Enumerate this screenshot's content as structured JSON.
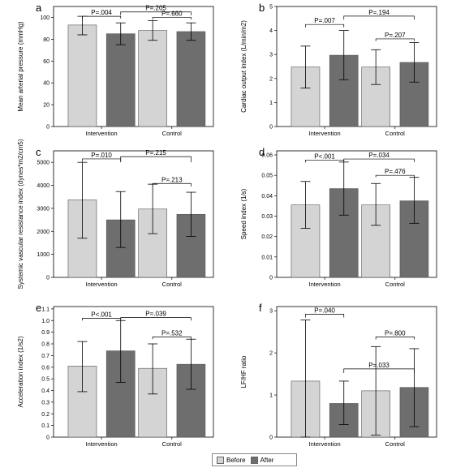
{
  "legend": {
    "before_label": "Before",
    "after_label": "After",
    "before_color": "#d4d4d4",
    "after_color": "#6e6e6e"
  },
  "chart_data": [
    {
      "type": "bar",
      "panel_label": "a",
      "ylabel": "Mean arterial pressure (mmHg)",
      "categories": [
        "Intervention",
        "Control"
      ],
      "ylim": [
        0,
        110
      ],
      "yticks": [
        0,
        20,
        40,
        60,
        80,
        100
      ],
      "ytick_labels": [
        "0",
        "20",
        "40",
        "60",
        "80",
        "100"
      ],
      "series": [
        {
          "name": "Before",
          "values": [
            93,
            88
          ],
          "err_low": [
            84,
            79
          ],
          "err_high": [
            101,
            97
          ]
        },
        {
          "name": "After",
          "values": [
            85,
            87
          ],
          "err_low": [
            75,
            79
          ],
          "err_high": [
            95,
            95
          ]
        }
      ],
      "annotations": [
        {
          "text": "P=.004",
          "from": [
            0,
            0
          ],
          "to": [
            0,
            1
          ],
          "level": 101,
          "drop": 2
        },
        {
          "text": "P=.205",
          "from": [
            0,
            1
          ],
          "to": [
            1,
            1
          ],
          "level": 105,
          "drop": 3
        },
        {
          "text": "P=.660",
          "from": [
            1,
            0
          ],
          "to": [
            1,
            1
          ],
          "level": 100,
          "drop": 2
        }
      ]
    },
    {
      "type": "bar",
      "panel_label": "b",
      "ylabel": "Cardiac output index (L/min/m2)",
      "categories": [
        "Intervention",
        "Control"
      ],
      "ylim": [
        0,
        5
      ],
      "yticks": [
        0,
        1,
        2,
        3,
        4,
        5
      ],
      "ytick_labels": [
        "0",
        "1",
        "2",
        "3",
        "4",
        "5"
      ],
      "series": [
        {
          "name": "Before",
          "values": [
            2.48,
            2.48
          ],
          "err_low": [
            1.6,
            1.75
          ],
          "err_high": [
            3.35,
            3.2
          ]
        },
        {
          "name": "After",
          "values": [
            2.97,
            2.67
          ],
          "err_low": [
            1.95,
            1.85
          ],
          "err_high": [
            4.0,
            3.5
          ]
        }
      ],
      "annotations": [
        {
          "text": "P=.007",
          "from": [
            0,
            0
          ],
          "to": [
            0,
            1
          ],
          "level": 4.25,
          "drop": 0.12
        },
        {
          "text": "P=.194",
          "from": [
            0,
            1
          ],
          "to": [
            1,
            1
          ],
          "level": 4.6,
          "drop": 0.15
        },
        {
          "text": "P=.207",
          "from": [
            1,
            0
          ],
          "to": [
            1,
            1
          ],
          "level": 3.65,
          "drop": 0.1
        }
      ]
    },
    {
      "type": "bar",
      "panel_label": "c",
      "ylabel": "Systemic vascular resistance index (dynes*m2/cm5)",
      "categories": [
        "Intervention",
        "Control"
      ],
      "ylim": [
        0,
        5500
      ],
      "yticks": [
        0,
        1000,
        2000,
        3000,
        4000,
        5000
      ],
      "ytick_labels": [
        "0",
        "1000",
        "2000",
        "3000",
        "4000",
        "5000"
      ],
      "series": [
        {
          "name": "Before",
          "values": [
            3370,
            2970
          ],
          "err_low": [
            1700,
            1900
          ],
          "err_high": [
            5000,
            4050
          ]
        },
        {
          "name": "After",
          "values": [
            2500,
            2740
          ],
          "err_low": [
            1300,
            1780
          ],
          "err_high": [
            3730,
            3700
          ]
        }
      ],
      "annotations": [
        {
          "text": "P=.010",
          "from": [
            0,
            0
          ],
          "to": [
            0,
            1
          ],
          "level": 5150,
          "drop": 120
        },
        {
          "text": "P=.215",
          "from": [
            0,
            1
          ],
          "to": [
            1,
            1
          ],
          "level": 5250,
          "drop": 250
        },
        {
          "text": "P=.213",
          "from": [
            1,
            0
          ],
          "to": [
            1,
            1
          ],
          "level": 4080,
          "drop": 130
        }
      ]
    },
    {
      "type": "bar",
      "panel_label": "d",
      "ylabel": "Speed index (1/s)",
      "categories": [
        "Intervention",
        "Control"
      ],
      "ylim": [
        0,
        0.062
      ],
      "yticks": [
        0,
        0.01,
        0.02,
        0.03,
        0.04,
        0.05,
        0.06
      ],
      "ytick_labels": [
        "0",
        "0.01",
        "0.02",
        "0.03",
        "0.04",
        "0.05",
        "0.06"
      ],
      "series": [
        {
          "name": "Before",
          "values": [
            0.0355,
            0.0355
          ],
          "err_low": [
            0.024,
            0.0255
          ],
          "err_high": [
            0.047,
            0.046
          ]
        },
        {
          "name": "After",
          "values": [
            0.0435,
            0.0375
          ],
          "err_low": [
            0.0305,
            0.0265
          ],
          "err_high": [
            0.0565,
            0.049
          ]
        }
      ],
      "annotations": [
        {
          "text": "P<.001",
          "from": [
            0,
            0
          ],
          "to": [
            0,
            1
          ],
          "level": 0.0575,
          "drop": 0.0012
        },
        {
          "text": "P=.034",
          "from": [
            0,
            1
          ],
          "to": [
            1,
            1
          ],
          "level": 0.058,
          "drop": 0.0015
        },
        {
          "text": "P=.476",
          "from": [
            1,
            0
          ],
          "to": [
            1,
            1
          ],
          "level": 0.05,
          "drop": 0.001
        }
      ]
    },
    {
      "type": "bar",
      "panel_label": "e",
      "ylabel": "Acceleration index (1/s2)",
      "categories": [
        "Intervention",
        "Control"
      ],
      "ylim": [
        0,
        1.12
      ],
      "yticks": [
        0,
        0.1,
        0.2,
        0.3,
        0.4,
        0.5,
        0.6,
        0.7,
        0.8,
        0.9,
        1.0,
        1.1
      ],
      "ytick_labels": [
        "0",
        "0.1",
        "0.2",
        "0.3",
        "0.4",
        "0.5",
        "0.6",
        "0.7",
        "0.8",
        "0.9",
        "1.0",
        "1.1"
      ],
      "series": [
        {
          "name": "Before",
          "values": [
            0.61,
            0.59
          ],
          "err_low": [
            0.39,
            0.37
          ],
          "err_high": [
            0.82,
            0.8
          ]
        },
        {
          "name": "After",
          "values": [
            0.74,
            0.625
          ],
          "err_low": [
            0.47,
            0.41
          ],
          "err_high": [
            1.0,
            0.84
          ]
        }
      ],
      "annotations": [
        {
          "text": "P<.001",
          "from": [
            0,
            0
          ],
          "to": [
            0,
            1
          ],
          "level": 1.02,
          "drop": 0.02
        },
        {
          "text": "P=.039",
          "from": [
            0,
            1
          ],
          "to": [
            1,
            1
          ],
          "level": 1.025,
          "drop": 0.025
        },
        {
          "text": "P=.532",
          "from": [
            1,
            0
          ],
          "to": [
            1,
            1
          ],
          "level": 0.86,
          "drop": 0.02
        }
      ]
    },
    {
      "type": "bar",
      "panel_label": "f",
      "ylabel": "LF/HF ratio",
      "categories": [
        "Intervention",
        "Control"
      ],
      "ylim": [
        0,
        3.1
      ],
      "yticks": [
        0,
        1,
        2,
        3
      ],
      "ytick_labels": [
        "0",
        "1",
        "2",
        "3"
      ],
      "series": [
        {
          "name": "Before",
          "values": [
            1.33,
            1.1
          ],
          "err_low": [
            0,
            0.05
          ],
          "err_high": [
            2.78,
            2.15
          ]
        },
        {
          "name": "After",
          "values": [
            0.8,
            1.18
          ],
          "err_low": [
            0.3,
            0.25
          ],
          "err_high": [
            1.33,
            2.1
          ]
        }
      ],
      "annotations": [
        {
          "text": "P=.040",
          "from": [
            0,
            0
          ],
          "to": [
            0,
            1
          ],
          "level": 2.92,
          "drop": 0.08
        },
        {
          "text": "P=.033",
          "from": [
            0,
            1
          ],
          "to": [
            1,
            1
          ],
          "level": 1.62,
          "drop": 0.1
        },
        {
          "text": "P=.800",
          "from": [
            1,
            0
          ],
          "to": [
            1,
            1
          ],
          "level": 2.38,
          "drop": 0.06
        }
      ]
    }
  ]
}
